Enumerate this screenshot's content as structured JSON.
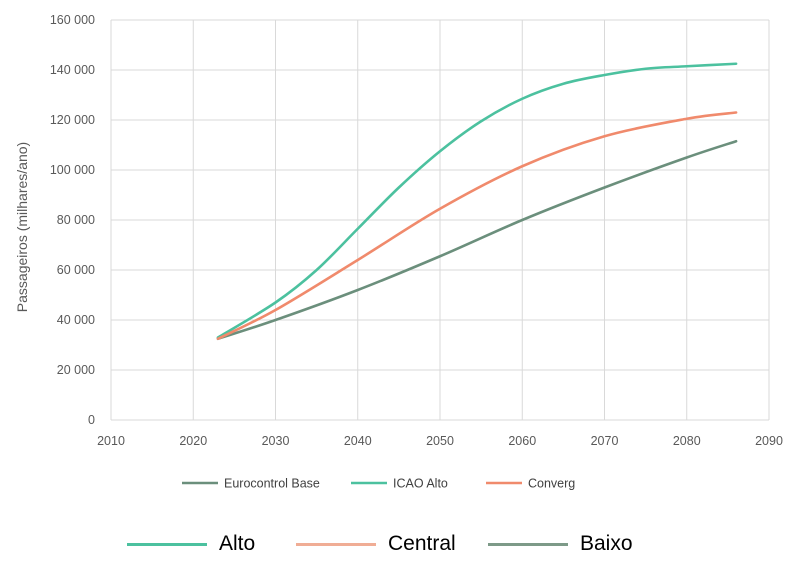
{
  "chart_data": {
    "type": "line",
    "title": "",
    "xlabel": "",
    "ylabel": "Passageiros (milhares/ano)",
    "xlim": [
      2010,
      2090
    ],
    "ylim": [
      0,
      160000
    ],
    "x_ticks": [
      "2010",
      "2020",
      "2030",
      "2040",
      "2050",
      "2060",
      "2070",
      "2080",
      "2090"
    ],
    "y_ticks": [
      "0",
      "20 000",
      "40 000",
      "60 000",
      "80 000",
      "100 000",
      "120 000",
      "140 000",
      "160 000"
    ],
    "grid": true,
    "legend_position": "bottom",
    "series": [
      {
        "name": "Eurocontrol Base",
        "color": "#6b8f7c",
        "x": [
          2023,
          2030,
          2040,
          2050,
          2060,
          2070,
          2080,
          2086
        ],
        "y": [
          32500,
          40000,
          52000,
          65500,
          80000,
          93000,
          105000,
          111500
        ]
      },
      {
        "name": "ICAO Alto",
        "color": "#4cc19f",
        "x": [
          2023,
          2030,
          2035,
          2040,
          2045,
          2050,
          2055,
          2060,
          2065,
          2070,
          2075,
          2080,
          2086
        ],
        "y": [
          33000,
          47000,
          60000,
          76500,
          93000,
          107500,
          119500,
          128500,
          134500,
          138000,
          140500,
          141500,
          142500
        ]
      },
      {
        "name": "Converg",
        "color": "#f08a6c",
        "x": [
          2023,
          2030,
          2040,
          2050,
          2060,
          2070,
          2080,
          2086
        ],
        "y": [
          32500,
          44000,
          64000,
          84500,
          101500,
          113500,
          120500,
          123000
        ]
      }
    ]
  },
  "legend_bottom": [
    {
      "label": "Alto",
      "color": "#4cc19f"
    },
    {
      "label": "Central",
      "color": "#f0ad95"
    },
    {
      "label": "Baixo",
      "color": "#7d9a88"
    }
  ]
}
